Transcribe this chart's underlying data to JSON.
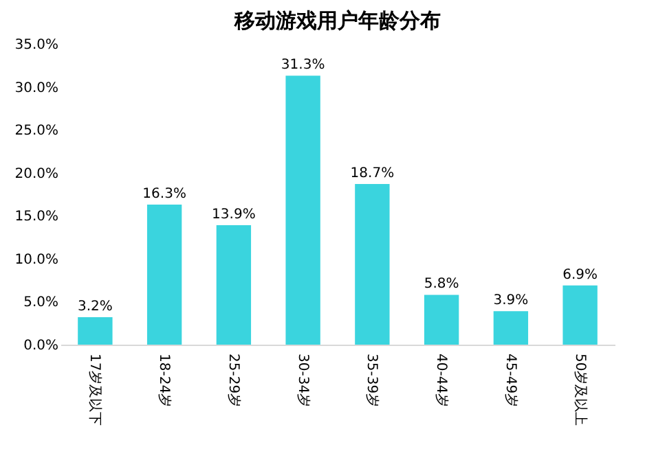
{
  "chart_data": {
    "type": "bar",
    "title": "移动游戏用户年龄分布",
    "categories": [
      "17岁及以下",
      "18-24岁",
      "25-29岁",
      "30-34岁",
      "35-39岁",
      "40-44岁",
      "45-49岁",
      "50岁及以上"
    ],
    "values": [
      3.2,
      16.3,
      13.9,
      31.3,
      18.7,
      5.8,
      3.9,
      6.9
    ],
    "value_labels": [
      "3.2%",
      "16.3%",
      "13.9%",
      "31.3%",
      "18.7%",
      "5.8%",
      "3.9%",
      "6.9%"
    ],
    "color": "#3ad4de",
    "ylim": [
      0,
      35
    ],
    "yticks": [
      {
        "value": 0,
        "label": "0.0%"
      },
      {
        "value": 5,
        "label": "5.0%"
      },
      {
        "value": 10,
        "label": "10.0%"
      },
      {
        "value": 15,
        "label": "15.0%"
      },
      {
        "value": 20,
        "label": "20.0%"
      },
      {
        "value": 25,
        "label": "25.0%"
      },
      {
        "value": 30,
        "label": "30.0%"
      },
      {
        "value": 35,
        "label": "35.0%"
      }
    ],
    "grid": false
  }
}
